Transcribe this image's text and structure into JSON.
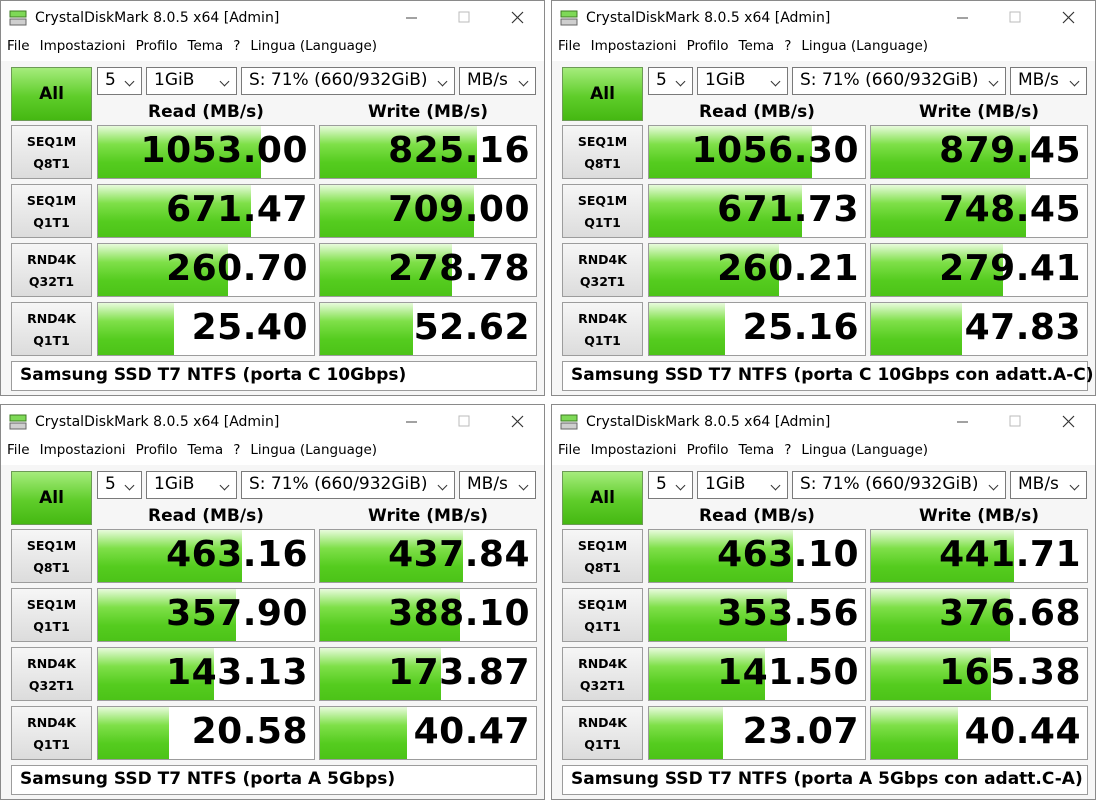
{
  "windows": [
    {
      "title": "CrystalDiskMark 8.0.5 x64 [Admin]",
      "menu": [
        "File",
        "Impostazioni",
        "Profilo",
        "Tema",
        "?",
        "Lingua (Language)"
      ],
      "controls": {
        "all": "All",
        "count": "5",
        "size": "1GiB",
        "drive": "S: 71% (660/932GiB)",
        "unit": "MB/s"
      },
      "headers": {
        "read": "Read (MB/s)",
        "write": "Write (MB/s)"
      },
      "rows": [
        {
          "label": [
            "SEQ1M",
            "Q8T1"
          ],
          "read": "1053.00",
          "write": "825.16"
        },
        {
          "label": [
            "SEQ1M",
            "Q1T1"
          ],
          "read": "671.47",
          "write": "709.00"
        },
        {
          "label": [
            "RND4K",
            "Q32T1"
          ],
          "read": "260.70",
          "write": "278.78"
        },
        {
          "label": [
            "RND4K",
            "Q1T1"
          ],
          "read": "25.40",
          "write": "52.62"
        }
      ],
      "comment": "Samsung SSD T7 NTFS (porta C 10Gbps)"
    },
    {
      "title": "CrystalDiskMark 8.0.5 x64 [Admin]",
      "menu": [
        "File",
        "Impostazioni",
        "Profilo",
        "Tema",
        "?",
        "Lingua (Language)"
      ],
      "controls": {
        "all": "All",
        "count": "5",
        "size": "1GiB",
        "drive": "S: 71% (660/932GiB)",
        "unit": "MB/s"
      },
      "headers": {
        "read": "Read (MB/s)",
        "write": "Write (MB/s)"
      },
      "rows": [
        {
          "label": [
            "SEQ1M",
            "Q8T1"
          ],
          "read": "1056.30",
          "write": "879.45"
        },
        {
          "label": [
            "SEQ1M",
            "Q1T1"
          ],
          "read": "671.73",
          "write": "748.45"
        },
        {
          "label": [
            "RND4K",
            "Q32T1"
          ],
          "read": "260.21",
          "write": "279.41"
        },
        {
          "label": [
            "RND4K",
            "Q1T1"
          ],
          "read": "25.16",
          "write": "47.83"
        }
      ],
      "comment": "Samsung SSD T7 NTFS (porta C 10Gbps con adatt.A-C)"
    },
    {
      "title": "CrystalDiskMark 8.0.5 x64 [Admin]",
      "menu": [
        "File",
        "Impostazioni",
        "Profilo",
        "Tema",
        "?",
        "Lingua (Language)"
      ],
      "controls": {
        "all": "All",
        "count": "5",
        "size": "1GiB",
        "drive": "S: 71% (660/932GiB)",
        "unit": "MB/s"
      },
      "headers": {
        "read": "Read (MB/s)",
        "write": "Write (MB/s)"
      },
      "rows": [
        {
          "label": [
            "SEQ1M",
            "Q8T1"
          ],
          "read": "463.16",
          "write": "437.84"
        },
        {
          "label": [
            "SEQ1M",
            "Q1T1"
          ],
          "read": "357.90",
          "write": "388.10"
        },
        {
          "label": [
            "RND4K",
            "Q32T1"
          ],
          "read": "143.13",
          "write": "173.87"
        },
        {
          "label": [
            "RND4K",
            "Q1T1"
          ],
          "read": "20.58",
          "write": "40.47"
        }
      ],
      "comment": "Samsung SSD T7 NTFS (porta A 5Gbps)"
    },
    {
      "title": "CrystalDiskMark 8.0.5 x64 [Admin]",
      "menu": [
        "File",
        "Impostazioni",
        "Profilo",
        "Tema",
        "?",
        "Lingua (Language)"
      ],
      "controls": {
        "all": "All",
        "count": "5",
        "size": "1GiB",
        "drive": "S: 71% (660/932GiB)",
        "unit": "MB/s"
      },
      "headers": {
        "read": "Read (MB/s)",
        "write": "Write (MB/s)"
      },
      "rows": [
        {
          "label": [
            "SEQ1M",
            "Q8T1"
          ],
          "read": "463.10",
          "write": "441.71"
        },
        {
          "label": [
            "SEQ1M",
            "Q1T1"
          ],
          "read": "353.56",
          "write": "376.68"
        },
        {
          "label": [
            "RND4K",
            "Q32T1"
          ],
          "read": "141.50",
          "write": "165.38"
        },
        {
          "label": [
            "RND4K",
            "Q1T1"
          ],
          "read": "23.07",
          "write": "40.44"
        }
      ],
      "comment": "Samsung SSD T7 NTFS (porta A 5Gbps con adatt.C-A)"
    }
  ]
}
